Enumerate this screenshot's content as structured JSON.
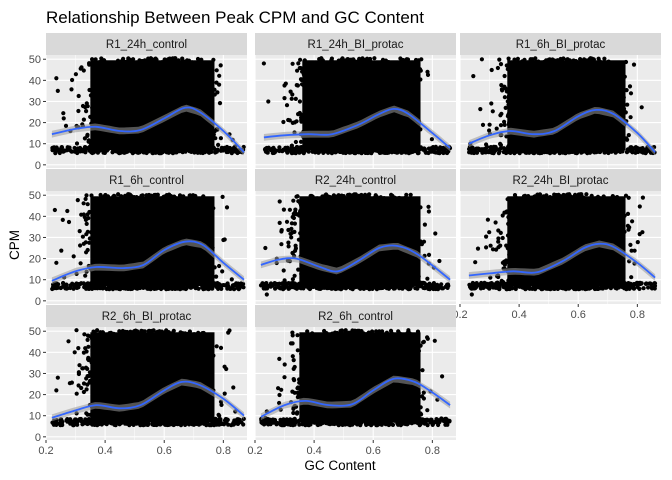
{
  "chart_data": {
    "type": "scatter",
    "title": "Relationship Between Peak CPM and GC Content",
    "xlabel": "GC Content",
    "ylabel": "CPM",
    "xlim": [
      0.2,
      0.88
    ],
    "ylim": [
      -1.5,
      52
    ],
    "x_ticks": [
      0.2,
      0.4,
      0.6,
      0.8
    ],
    "x_tick_labels": [
      "0.2",
      "0.4",
      "0.6",
      "0.8"
    ],
    "y_ticks": [
      0,
      10,
      20,
      30,
      40,
      50
    ],
    "y_tick_labels": [
      "0",
      "10",
      "20",
      "30",
      "40",
      "50"
    ],
    "grid": true,
    "facet_layout": {
      "columns": 3,
      "rows": 3
    },
    "colors": {
      "point": "#000000",
      "smooth": "#3366FF",
      "panel_bg": "#EBEBEB",
      "strip_bg": "#D9D9D9",
      "grid": "#FFFFFF"
    },
    "panels": [
      {
        "label": "R1_24h_control",
        "x_range": [
          0.22,
          0.87
        ],
        "smooth": [
          [
            0.22,
            14.5
          ],
          [
            0.3,
            17
          ],
          [
            0.37,
            18
          ],
          [
            0.45,
            16
          ],
          [
            0.52,
            16.5
          ],
          [
            0.6,
            22
          ],
          [
            0.67,
            27
          ],
          [
            0.72,
            25
          ],
          [
            0.8,
            16
          ],
          [
            0.87,
            6
          ]
        ],
        "outliers": [
          [
            0.235,
            41
          ],
          [
            0.24,
            35
          ],
          [
            0.26,
            22
          ]
        ]
      },
      {
        "label": "R1_24h_BI_protac",
        "x_range": [
          0.23,
          0.86
        ],
        "smooth": [
          [
            0.23,
            13
          ],
          [
            0.3,
            14
          ],
          [
            0.38,
            14.5
          ],
          [
            0.46,
            14.5
          ],
          [
            0.55,
            19
          ],
          [
            0.62,
            24
          ],
          [
            0.67,
            26.5
          ],
          [
            0.72,
            24
          ],
          [
            0.8,
            15
          ],
          [
            0.86,
            8
          ]
        ],
        "outliers": [
          [
            0.23,
            48
          ],
          [
            0.245,
            30
          ]
        ]
      },
      {
        "label": "R1_6h_BI_protac",
        "x_range": [
          0.23,
          0.86
        ],
        "smooth": [
          [
            0.23,
            10
          ],
          [
            0.3,
            14
          ],
          [
            0.37,
            16
          ],
          [
            0.45,
            14.5
          ],
          [
            0.52,
            16
          ],
          [
            0.6,
            23
          ],
          [
            0.66,
            26
          ],
          [
            0.72,
            24
          ],
          [
            0.8,
            15
          ],
          [
            0.86,
            6
          ]
        ],
        "outliers": [
          [
            0.235,
            10
          ],
          [
            0.245,
            42
          ]
        ]
      },
      {
        "label": "R1_6h_control",
        "x_range": [
          0.22,
          0.87
        ],
        "smooth": [
          [
            0.22,
            9.5
          ],
          [
            0.3,
            14
          ],
          [
            0.37,
            16
          ],
          [
            0.46,
            15.5
          ],
          [
            0.53,
            17
          ],
          [
            0.6,
            24
          ],
          [
            0.67,
            28
          ],
          [
            0.73,
            26.5
          ],
          [
            0.8,
            18
          ],
          [
            0.87,
            10
          ]
        ],
        "outliers": [
          [
            0.23,
            43
          ],
          [
            0.235,
            18
          ]
        ]
      },
      {
        "label": "R2_24h_control",
        "x_range": [
          0.22,
          0.86
        ],
        "smooth": [
          [
            0.22,
            17
          ],
          [
            0.28,
            19.5
          ],
          [
            0.34,
            20
          ],
          [
            0.42,
            16
          ],
          [
            0.48,
            14
          ],
          [
            0.55,
            19
          ],
          [
            0.62,
            25
          ],
          [
            0.68,
            26
          ],
          [
            0.75,
            22
          ],
          [
            0.86,
            10
          ]
        ],
        "outliers": [
          [
            0.23,
            6
          ],
          [
            0.24,
            3
          ],
          [
            0.235,
            25
          ]
        ]
      },
      {
        "label": "R2_24h_BI_protac",
        "x_range": [
          0.23,
          0.86
        ],
        "smooth": [
          [
            0.23,
            12
          ],
          [
            0.3,
            13
          ],
          [
            0.38,
            14
          ],
          [
            0.46,
            13.5
          ],
          [
            0.55,
            19
          ],
          [
            0.62,
            25
          ],
          [
            0.67,
            27
          ],
          [
            0.72,
            25.5
          ],
          [
            0.8,
            18
          ],
          [
            0.86,
            11
          ]
        ],
        "outliers": [
          [
            0.24,
            3
          ],
          [
            0.245,
            8
          ]
        ]
      },
      {
        "label": "R2_6h_BI_protac",
        "x_range": [
          0.22,
          0.87
        ],
        "smooth": [
          [
            0.22,
            9
          ],
          [
            0.3,
            12.5
          ],
          [
            0.37,
            15
          ],
          [
            0.45,
            13.5
          ],
          [
            0.52,
            15
          ],
          [
            0.6,
            22
          ],
          [
            0.66,
            26
          ],
          [
            0.72,
            24.5
          ],
          [
            0.8,
            18
          ],
          [
            0.87,
            10
          ]
        ],
        "outliers": [
          [
            0.235,
            22
          ],
          [
            0.24,
            28
          ]
        ]
      },
      {
        "label": "R2_6h_control",
        "x_range": [
          0.22,
          0.86
        ],
        "smooth": [
          [
            0.22,
            9.5
          ],
          [
            0.3,
            15
          ],
          [
            0.37,
            17
          ],
          [
            0.45,
            15
          ],
          [
            0.53,
            15.5
          ],
          [
            0.6,
            22
          ],
          [
            0.67,
            27.5
          ],
          [
            0.74,
            26
          ],
          [
            0.8,
            21
          ],
          [
            0.86,
            15
          ]
        ],
        "outliers": [
          [
            0.235,
            9
          ],
          [
            0.24,
            12
          ]
        ]
      }
    ]
  }
}
